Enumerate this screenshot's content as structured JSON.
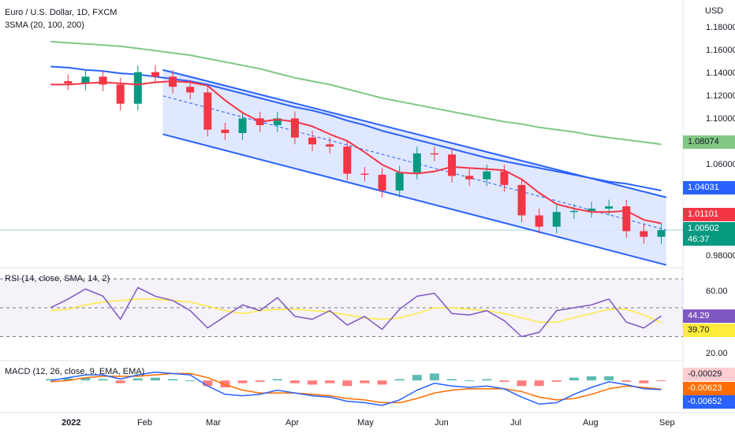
{
  "header": {
    "symbol_title": "Euro / U.S. Dollar, 1D, FXCM",
    "indicator_label": "3SMA (20, 100, 200)",
    "currency": "USD"
  },
  "price_axis": {
    "ticks": [
      "1.18000",
      "1.16000",
      "1.14000",
      "1.12000",
      "1.10000",
      "1.06000",
      "0.98000"
    ],
    "tags": {
      "sma200": "1.08074",
      "sma100": "1.04031",
      "sma20": "1.01101",
      "last_price": "1.00502",
      "countdown": "46:37"
    }
  },
  "rsi_pane": {
    "label": "RSI (14, close, SMA, 14, 2)",
    "ticks": [
      "60.00",
      "20.00"
    ],
    "tags": {
      "rsi": "44.29",
      "rsi_ma": "39.70"
    }
  },
  "macd_pane": {
    "label": "MACD (12, 26, close, 9, EMA, EMA)",
    "tags": {
      "hist": "-0.00029",
      "signal": "-0.00623",
      "macd": "-0.00652"
    }
  },
  "time_axis": {
    "labels": [
      "2022",
      "Feb",
      "Mar",
      "Apr",
      "May",
      "Jun",
      "Jul",
      "Aug",
      "Sep"
    ]
  },
  "colors": {
    "up": "#089981",
    "down": "#f23645",
    "sma20": "#f23645",
    "sma100": "#2962ff",
    "sma200": "#81c784",
    "channel": "#2962ff",
    "channel_fill": "#dbe4ff",
    "rsi_line": "#7e57c2",
    "rsi_ma": "#ffeb3b",
    "macd_line": "#2962ff",
    "signal_line": "#ff6d00",
    "hist_up": "#26a69a",
    "hist_down": "#ff5252"
  },
  "chart_data": [
    {
      "type": "candlestick",
      "title": "Euro / U.S. Dollar, 1D, FXCM",
      "ylabel": "USD",
      "ylim": [
        0.973,
        1.195
      ],
      "x": [
        "2021-12-27",
        "2022-01-03",
        "2022-01-10",
        "2022-01-17",
        "2022-01-24",
        "2022-01-31",
        "2022-02-07",
        "2022-02-14",
        "2022-02-21",
        "2022-02-28",
        "2022-03-07",
        "2022-03-14",
        "2022-03-21",
        "2022-03-28",
        "2022-04-04",
        "2022-04-11",
        "2022-04-18",
        "2022-04-25",
        "2022-05-02",
        "2022-05-09",
        "2022-05-16",
        "2022-05-23",
        "2022-05-30",
        "2022-06-06",
        "2022-06-13",
        "2022-06-20",
        "2022-06-27",
        "2022-07-04",
        "2022-07-11",
        "2022-07-18",
        "2022-07-25",
        "2022-08-01",
        "2022-08-08",
        "2022-08-15",
        "2022-08-22",
        "2022-08-29"
      ],
      "close": [
        1.137,
        1.135,
        1.141,
        1.134,
        1.117,
        1.145,
        1.141,
        1.132,
        1.127,
        1.094,
        1.091,
        1.104,
        1.098,
        1.104,
        1.087,
        1.081,
        1.079,
        1.055,
        1.054,
        1.04,
        1.056,
        1.073,
        1.072,
        1.053,
        1.05,
        1.057,
        1.045,
        1.018,
        1.008,
        1.021,
        1.022,
        1.024,
        1.026,
        1.004,
        0.999,
        1.005
      ],
      "sma20": [
        1.134,
        1.134,
        1.135,
        1.136,
        1.135,
        1.134,
        1.136,
        1.137,
        1.136,
        1.133,
        1.12,
        1.109,
        1.101,
        1.103,
        1.101,
        1.097,
        1.09,
        1.084,
        1.074,
        1.063,
        1.056,
        1.055,
        1.057,
        1.061,
        1.06,
        1.059,
        1.058,
        1.05,
        1.038,
        1.028,
        1.024,
        1.021,
        1.021,
        1.022,
        1.014,
        1.011
      ],
      "sma100": [
        1.15,
        1.149,
        1.147,
        1.146,
        1.144,
        1.143,
        1.141,
        1.139,
        1.137,
        1.134,
        1.13,
        1.126,
        1.122,
        1.118,
        1.114,
        1.111,
        1.107,
        1.102,
        1.098,
        1.093,
        1.089,
        1.085,
        1.081,
        1.077,
        1.073,
        1.069,
        1.066,
        1.063,
        1.06,
        1.057,
        1.054,
        1.051,
        1.048,
        1.046,
        1.043,
        1.04
      ],
      "sma200": [
        1.172,
        1.171,
        1.17,
        1.169,
        1.168,
        1.166,
        1.164,
        1.162,
        1.16,
        1.157,
        1.154,
        1.151,
        1.148,
        1.144,
        1.14,
        1.137,
        1.134,
        1.13,
        1.126,
        1.122,
        1.119,
        1.116,
        1.113,
        1.11,
        1.107,
        1.104,
        1.101,
        1.099,
        1.096,
        1.094,
        1.092,
        1.089,
        1.087,
        1.085,
        1.083,
        1.081
      ],
      "channel": {
        "start": "2022-02-10",
        "end": "2022-08-31",
        "upper": [
          1.147,
          1.034
        ],
        "middle": [
          1.124,
          1.005
        ],
        "lower": [
          1.09,
          0.974
        ]
      }
    },
    {
      "type": "line",
      "title": "RSI (14, close, SMA, 14, 2)",
      "ylim": [
        15,
        75
      ],
      "bands": [
        30,
        50,
        70
      ],
      "x_ref": "same as price",
      "rsi": [
        50,
        56,
        63,
        58,
        42,
        64,
        58,
        55,
        48,
        36,
        44,
        52,
        48,
        57,
        44,
        42,
        48,
        38,
        44,
        35,
        49,
        58,
        60,
        46,
        45,
        48,
        41,
        30,
        33,
        48,
        50,
        52,
        56,
        40,
        36,
        44.29
      ],
      "rsi_ma": [
        48,
        49,
        52,
        54,
        55,
        56,
        56,
        55,
        54,
        51,
        48,
        46,
        48,
        49,
        49,
        48,
        47,
        45,
        43,
        42,
        43,
        46,
        50,
        50,
        49,
        48,
        46,
        43,
        40,
        40,
        43,
        46,
        49,
        49,
        45,
        39.7
      ]
    },
    {
      "type": "bar",
      "title": "MACD (12, 26, close, 9, EMA, EMA)",
      "x_ref": "same as price",
      "hist": [
        0.001,
        0.0015,
        0.002,
        0.001,
        -0.002,
        0.0015,
        0.002,
        0.001,
        0.0,
        -0.004,
        -0.005,
        -0.002,
        -0.001,
        0.001,
        -0.002,
        -0.003,
        -0.002,
        -0.004,
        -0.002,
        -0.003,
        0.001,
        0.004,
        0.005,
        0.001,
        0.0,
        0.001,
        -0.001,
        -0.004,
        -0.004,
        -0.001,
        0.002,
        0.003,
        0.003,
        -0.001,
        -0.002,
        -0.00029
      ],
      "macd": [
        0.0,
        0.002,
        0.004,
        0.004,
        0.001,
        0.004,
        0.006,
        0.005,
        0.004,
        -0.004,
        -0.01,
        -0.011,
        -0.01,
        -0.007,
        -0.009,
        -0.011,
        -0.012,
        -0.015,
        -0.016,
        -0.018,
        -0.014,
        -0.007,
        -0.002,
        -0.004,
        -0.005,
        -0.004,
        -0.006,
        -0.012,
        -0.017,
        -0.016,
        -0.01,
        -0.005,
        -0.001,
        -0.003,
        -0.006,
        -0.00652
      ],
      "signal": [
        -0.001,
        0.0,
        0.002,
        0.003,
        0.003,
        0.003,
        0.004,
        0.005,
        0.005,
        0.002,
        -0.003,
        -0.007,
        -0.009,
        -0.009,
        -0.009,
        -0.01,
        -0.011,
        -0.013,
        -0.014,
        -0.016,
        -0.016,
        -0.013,
        -0.009,
        -0.007,
        -0.006,
        -0.006,
        -0.006,
        -0.008,
        -0.012,
        -0.014,
        -0.013,
        -0.01,
        -0.006,
        -0.004,
        -0.005,
        -0.00623
      ],
      "ylim": [
        -0.022,
        0.012
      ]
    }
  ]
}
